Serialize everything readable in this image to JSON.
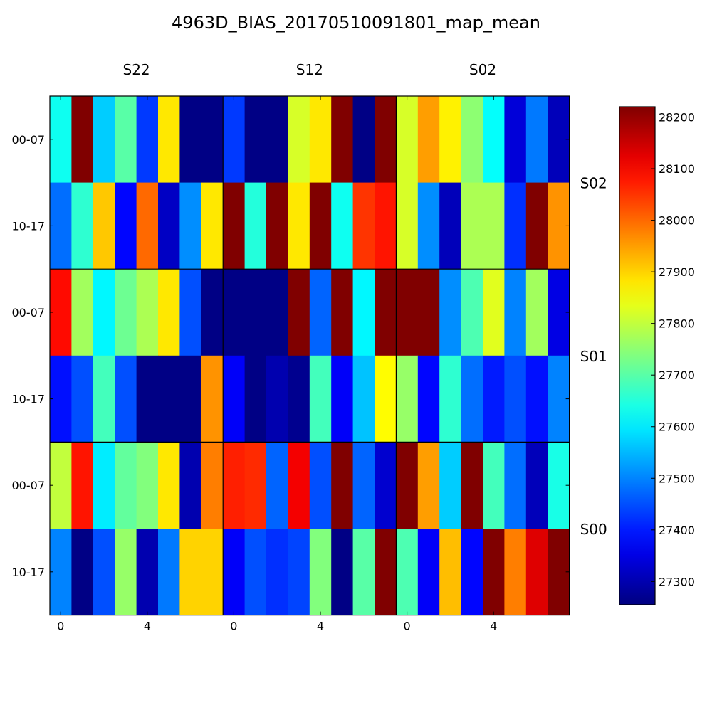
{
  "chart_data": {
    "type": "heatmap",
    "title": "4963D_BIAS_20170510091801_map_mean",
    "column_groups": [
      "S22",
      "S12",
      "S02"
    ],
    "row_groups": [
      "S02",
      "S01",
      "S00"
    ],
    "row_labels": [
      "00-07",
      "10-17",
      "00-07",
      "10-17",
      "00-07",
      "10-17"
    ],
    "x_ticks": [
      {
        "col": 0,
        "label": "0"
      },
      {
        "col": 4,
        "label": "4"
      },
      {
        "col": 8,
        "label": "0"
      },
      {
        "col": 12,
        "label": "4"
      },
      {
        "col": 16,
        "label": "0"
      },
      {
        "col": 20,
        "label": "4"
      }
    ],
    "colorbar": {
      "min": 27255,
      "max": 28220,
      "ticks": [
        27300,
        27400,
        27500,
        27600,
        27700,
        27800,
        27900,
        28000,
        28100,
        28200
      ]
    },
    "colormap": "jet",
    "values": [
      [
        27630,
        28220,
        27570,
        27700,
        27430,
        27880,
        27260,
        27260,
        27430,
        27260,
        27260,
        27820,
        27880,
        28220,
        27260,
        28220,
        27820,
        27950,
        27870,
        27750,
        27620,
        27340,
        27490,
        27310
      ],
      [
        27480,
        27660,
        27910,
        27380,
        28000,
        27320,
        27510,
        27880,
        28220,
        27650,
        28220,
        27880,
        28220,
        27630,
        28050,
        28080,
        27820,
        27510,
        27310,
        27780,
        27780,
        27420,
        28220,
        27960
      ],
      [
        28090,
        27770,
        27610,
        27720,
        27780,
        27880,
        27450,
        27260,
        27260,
        27260,
        27260,
        28220,
        27470,
        28220,
        27610,
        28220,
        28220,
        28220,
        27510,
        27690,
        27830,
        27500,
        27770,
        27350
      ],
      [
        27390,
        27450,
        27680,
        27450,
        27260,
        27260,
        27260,
        27960,
        27370,
        27260,
        27300,
        27270,
        27680,
        27370,
        27560,
        27860,
        27760,
        27380,
        27660,
        27480,
        27400,
        27450,
        27390,
        27500
      ],
      [
        27800,
        28080,
        27600,
        27710,
        27740,
        27880,
        27300,
        27980,
        28070,
        28060,
        27470,
        28110,
        27450,
        28220,
        27470,
        27330,
        28220,
        27950,
        27570,
        28220,
        27680,
        27480,
        27310,
        27640
      ],
      [
        27500,
        27260,
        27450,
        27760,
        27300,
        27490,
        27900,
        27900,
        27370,
        27450,
        27420,
        27440,
        27740,
        27260,
        27700,
        28220,
        27690,
        27370,
        27920,
        27380,
        28220,
        27980,
        28130,
        28220
      ]
    ]
  }
}
